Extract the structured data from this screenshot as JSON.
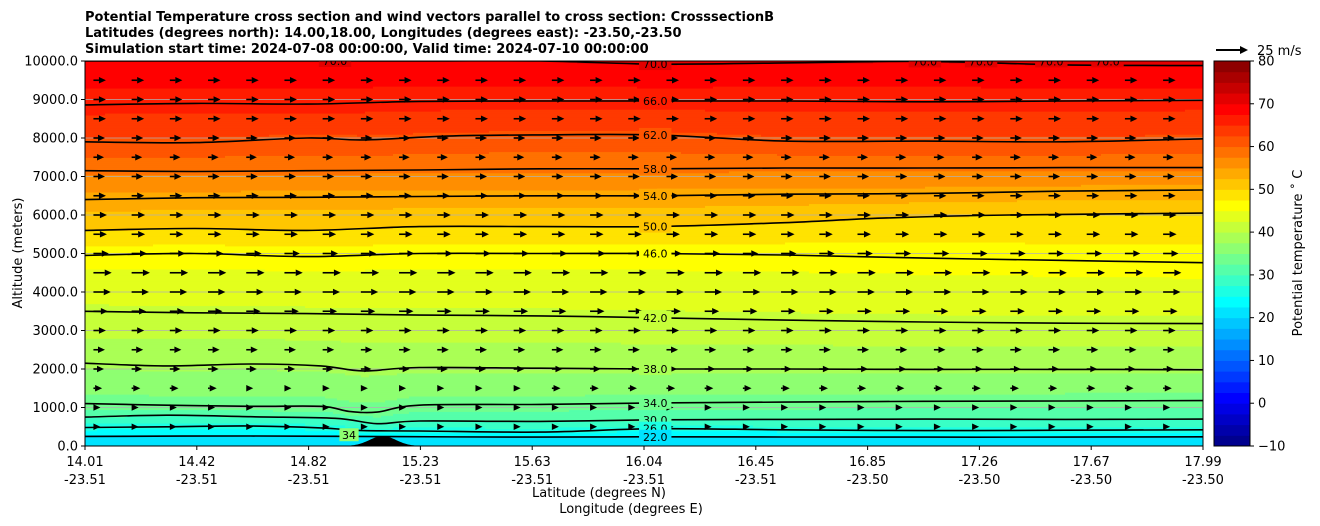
{
  "chart_data": {
    "type": "cross-section",
    "title": [
      "Potential Temperature cross section and wind vectors parallel to cross section: CrosssectionB",
      "Latitudes (degrees north): 14.00,18.00, Longitudes (degrees east): -23.50,-23.50",
      "Simulation start time: 2024-07-08 00:00:00, Valid time: 2024-07-10 00:00:00"
    ],
    "ylabel": "Altitude (meters)",
    "xlabel_lat": "Latitude (degrees N)",
    "xlabel_lon": "Longitude (degrees E)",
    "ylim": [
      0,
      10000
    ],
    "yticks": [
      0,
      1000,
      2000,
      3000,
      4000,
      5000,
      6000,
      7000,
      8000,
      9000,
      10000
    ],
    "ytick_labels": [
      "0.0",
      "1000.0",
      "2000.0",
      "3000.0",
      "4000.0",
      "5000.0",
      "6000.0",
      "7000.0",
      "8000.0",
      "9000.0",
      "10000.0"
    ],
    "xticks_lat": [
      "14.01",
      "14.42",
      "14.82",
      "15.23",
      "15.63",
      "16.04",
      "16.45",
      "16.85",
      "17.26",
      "17.67",
      "17.99"
    ],
    "xticks_lon": [
      "-23.51",
      "-23.51",
      "-23.51",
      "-23.51",
      "-23.51",
      "-23.51",
      "-23.51",
      "-23.50",
      "-23.50",
      "-23.50",
      "-23.50"
    ],
    "xlim": [
      14.01,
      17.99
    ],
    "colorbar": {
      "label": "Potential temperature ˚ C",
      "vmin": -10,
      "vmax": 80,
      "step": 2.5,
      "ticks": [
        -10,
        0,
        10,
        20,
        30,
        40,
        50,
        60,
        70,
        80
      ],
      "tick_labels": [
        "−10",
        "0",
        "10",
        "20",
        "30",
        "40",
        "50",
        "60",
        "70",
        "80"
      ],
      "colormap": "jet"
    },
    "quiver_key": {
      "label": "25 m/s",
      "speed": 25
    },
    "terrain": {
      "center_lat": 15.07,
      "half_width_lat": 0.12,
      "peak_m": 260
    },
    "contours": [
      {
        "value": 22,
        "label": "22.0",
        "points": [
          [
            14.01,
            250
          ],
          [
            14.6,
            260
          ],
          [
            15.1,
            245
          ],
          [
            15.63,
            230
          ],
          [
            16.04,
            240
          ],
          [
            16.5,
            235
          ],
          [
            17.0,
            230
          ],
          [
            17.5,
            232
          ],
          [
            17.99,
            240
          ]
        ]
      },
      {
        "value": 26,
        "label": "26.0",
        "points": [
          [
            14.01,
            480
          ],
          [
            14.3,
            500
          ],
          [
            14.6,
            520
          ],
          [
            14.85,
            470
          ],
          [
            15.0,
            400
          ],
          [
            15.2,
            390
          ],
          [
            15.63,
            360
          ],
          [
            16.04,
            450
          ],
          [
            16.5,
            420
          ],
          [
            17.0,
            400
          ],
          [
            17.5,
            410
          ],
          [
            17.99,
            420
          ]
        ]
      },
      {
        "value": 30,
        "label": "30.0",
        "points": [
          [
            14.01,
            750
          ],
          [
            14.3,
            800
          ],
          [
            14.6,
            760
          ],
          [
            14.9,
            720
          ],
          [
            15.05,
            580
          ],
          [
            15.2,
            650
          ],
          [
            15.63,
            640
          ],
          [
            16.04,
            680
          ],
          [
            16.5,
            690
          ],
          [
            17.0,
            700
          ],
          [
            17.5,
            690
          ],
          [
            17.99,
            700
          ]
        ]
      },
      {
        "value": 34,
        "label": "34.0",
        "points": [
          [
            14.01,
            1100
          ],
          [
            14.3,
            1060
          ],
          [
            14.6,
            1030
          ],
          [
            14.85,
            1030
          ],
          [
            14.95,
            900
          ],
          [
            15.05,
            880
          ],
          [
            15.2,
            1060
          ],
          [
            15.63,
            1080
          ],
          [
            16.04,
            1120
          ],
          [
            16.5,
            1140
          ],
          [
            17.0,
            1160
          ],
          [
            17.5,
            1170
          ],
          [
            17.99,
            1180
          ]
        ]
      },
      {
        "value": 38,
        "label": "38.0",
        "points": [
          [
            14.01,
            2150
          ],
          [
            14.3,
            2080
          ],
          [
            14.6,
            2130
          ],
          [
            14.85,
            2080
          ],
          [
            15.0,
            1950
          ],
          [
            15.2,
            2040
          ],
          [
            15.63,
            2020
          ],
          [
            16.04,
            2000
          ],
          [
            16.5,
            2000
          ],
          [
            17.0,
            1990
          ],
          [
            17.5,
            1990
          ],
          [
            17.99,
            1980
          ]
        ]
      },
      {
        "value": 42,
        "label": "42.0",
        "points": [
          [
            14.01,
            3500
          ],
          [
            14.4,
            3460
          ],
          [
            14.8,
            3440
          ],
          [
            15.2,
            3400
          ],
          [
            15.63,
            3380
          ],
          [
            16.04,
            3330
          ],
          [
            16.5,
            3270
          ],
          [
            17.0,
            3220
          ],
          [
            17.5,
            3190
          ],
          [
            17.99,
            3180
          ]
        ]
      },
      {
        "value": 46,
        "label": "46.0",
        "points": [
          [
            14.01,
            4950
          ],
          [
            14.4,
            5000
          ],
          [
            14.8,
            4920
          ],
          [
            15.2,
            5000
          ],
          [
            15.63,
            5000
          ],
          [
            16.04,
            5000
          ],
          [
            16.5,
            4960
          ],
          [
            17.0,
            4880
          ],
          [
            17.5,
            4820
          ],
          [
            17.99,
            4760
          ]
        ]
      },
      {
        "value": 50,
        "label": "50.0",
        "points": [
          [
            14.01,
            5600
          ],
          [
            14.4,
            5650
          ],
          [
            14.8,
            5600
          ],
          [
            15.2,
            5700
          ],
          [
            15.63,
            5700
          ],
          [
            16.04,
            5700
          ],
          [
            16.5,
            5800
          ],
          [
            16.85,
            5920
          ],
          [
            17.3,
            6000
          ],
          [
            17.99,
            6050
          ]
        ]
      },
      {
        "value": 54,
        "label": "54.0",
        "points": [
          [
            14.01,
            6400
          ],
          [
            14.4,
            6450
          ],
          [
            14.8,
            6460
          ],
          [
            15.2,
            6480
          ],
          [
            15.63,
            6500
          ],
          [
            16.04,
            6500
          ],
          [
            16.5,
            6540
          ],
          [
            17.0,
            6560
          ],
          [
            17.5,
            6620
          ],
          [
            17.99,
            6650
          ]
        ]
      },
      {
        "value": 58,
        "label": "58.0",
        "points": [
          [
            14.01,
            7150
          ],
          [
            14.4,
            7130
          ],
          [
            14.8,
            7150
          ],
          [
            15.2,
            7170
          ],
          [
            15.63,
            7200
          ],
          [
            16.04,
            7200
          ],
          [
            16.5,
            7220
          ],
          [
            17.0,
            7220
          ],
          [
            17.5,
            7230
          ],
          [
            17.99,
            7230
          ]
        ]
      },
      {
        "value": 62,
        "label": "62.0",
        "points": [
          [
            14.01,
            7900
          ],
          [
            14.4,
            7880
          ],
          [
            14.8,
            8000
          ],
          [
            15.0,
            7950
          ],
          [
            15.3,
            8050
          ],
          [
            15.63,
            8080
          ],
          [
            16.04,
            8080
          ],
          [
            16.5,
            7920
          ],
          [
            17.0,
            7920
          ],
          [
            17.5,
            7900
          ],
          [
            17.99,
            7980
          ]
        ]
      },
      {
        "value": 66,
        "label": "66.0",
        "points": [
          [
            14.01,
            8860
          ],
          [
            14.4,
            8900
          ],
          [
            14.8,
            8880
          ],
          [
            15.2,
            8950
          ],
          [
            15.63,
            8960
          ],
          [
            16.04,
            8960
          ],
          [
            16.5,
            8960
          ],
          [
            17.0,
            8940
          ],
          [
            17.5,
            8960
          ],
          [
            17.99,
            8980
          ]
        ]
      },
      {
        "value": 70,
        "label": "70.0",
        "points": [
          [
            14.01,
            10000
          ],
          [
            14.5,
            10000
          ],
          [
            15.2,
            10000
          ],
          [
            15.63,
            10000
          ],
          [
            16.04,
            9920
          ],
          [
            16.5,
            9950
          ],
          [
            17.0,
            9990
          ],
          [
            17.5,
            9900
          ],
          [
            17.99,
            9880
          ]
        ]
      }
    ],
    "contour_labels": [
      {
        "text": "70.0",
        "lat": 16.04,
        "alt": 9920
      },
      {
        "text": "66.0",
        "lat": 16.04,
        "alt": 8960
      },
      {
        "text": "62.0",
        "lat": 16.04,
        "alt": 8080
      },
      {
        "text": "58.0",
        "lat": 16.04,
        "alt": 7200
      },
      {
        "text": "54.0",
        "lat": 16.04,
        "alt": 6500
      },
      {
        "text": "50.0",
        "lat": 16.04,
        "alt": 5700
      },
      {
        "text": "46.0",
        "lat": 16.04,
        "alt": 5000
      },
      {
        "text": "42.0",
        "lat": 16.04,
        "alt": 3330
      },
      {
        "text": "38.0",
        "lat": 16.04,
        "alt": 2000
      },
      {
        "text": "34.0",
        "lat": 16.04,
        "alt": 1120
      },
      {
        "text": "30.0",
        "lat": 16.04,
        "alt": 680
      },
      {
        "text": "26.0",
        "lat": 16.04,
        "alt": 450
      },
      {
        "text": "22.0",
        "lat": 16.04,
        "alt": 240
      },
      {
        "text": "70.0",
        "lat": 14.9,
        "alt": 10000
      },
      {
        "text": "70.0",
        "lat": 17.0,
        "alt": 9990
      },
      {
        "text": "70.0",
        "lat": 17.2,
        "alt": 9990
      },
      {
        "text": "70.0",
        "lat": 17.45,
        "alt": 9990
      },
      {
        "text": "70.0",
        "lat": 17.65,
        "alt": 9990
      },
      {
        "text": "34",
        "lat": 14.95,
        "alt": 280
      }
    ],
    "wind_rows": [
      {
        "alt": 9500,
        "speed": 12
      },
      {
        "alt": 9000,
        "speed": 12
      },
      {
        "alt": 8500,
        "speed": 12
      },
      {
        "alt": 8000,
        "speed": 11
      },
      {
        "alt": 7500,
        "speed": 10
      },
      {
        "alt": 7000,
        "speed": 11
      },
      {
        "alt": 6500,
        "speed": 12
      },
      {
        "alt": 6000,
        "speed": 13
      },
      {
        "alt": 5500,
        "speed": 13
      },
      {
        "alt": 5000,
        "speed": 15
      },
      {
        "alt": 4500,
        "speed": 18
      },
      {
        "alt": 4000,
        "speed": 17
      },
      {
        "alt": 3500,
        "speed": 14
      },
      {
        "alt": 3000,
        "speed": 12
      },
      {
        "alt": 2500,
        "speed": 11
      },
      {
        "alt": 2000,
        "speed": 10
      },
      {
        "alt": 1500,
        "speed": 8
      },
      {
        "alt": 1000,
        "speed": 6
      },
      {
        "alt": 500,
        "speed": 4
      }
    ],
    "wind_lat_step": 0.136
  }
}
